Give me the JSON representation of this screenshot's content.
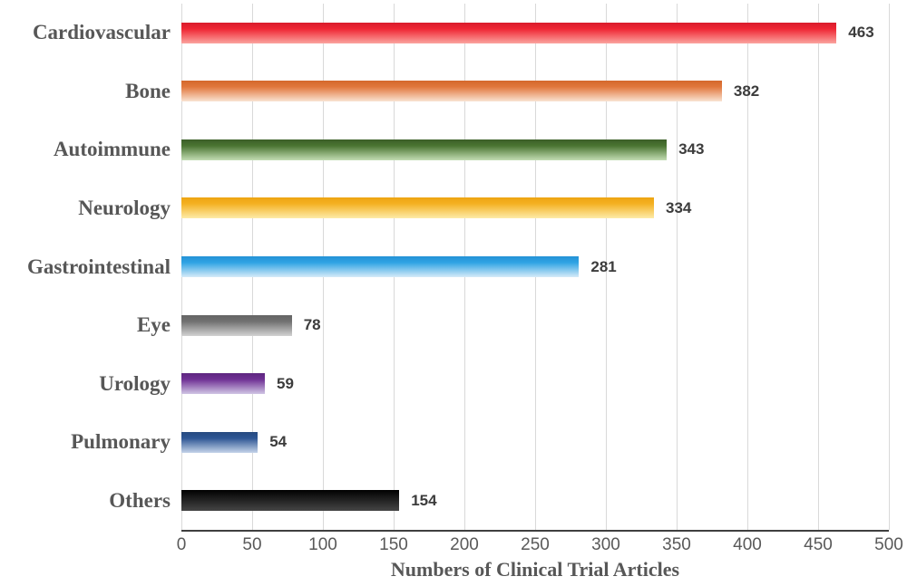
{
  "chart_data": {
    "type": "bar",
    "orientation": "horizontal",
    "title": "",
    "xlabel": "Numbers of Clinical Trial Articles",
    "ylabel": "",
    "xlim": [
      0,
      500
    ],
    "xticks": [
      0,
      50,
      100,
      150,
      200,
      250,
      300,
      350,
      400,
      450,
      500
    ],
    "grid": "vertical",
    "legend": "none",
    "categories": [
      "Cardiovascular",
      "Bone",
      "Autoimmune",
      "Neurology",
      "Gastrointestinal",
      "Eye",
      "Urology",
      "Pulmonary",
      "Others"
    ],
    "values": [
      463,
      382,
      343,
      334,
      281,
      78,
      59,
      54,
      154
    ],
    "bar_gradients": [
      [
        "#d91c2b",
        "#ef2533",
        "#fba49f"
      ],
      [
        "#d4682c",
        "#e1773c",
        "#f9e3d2"
      ],
      [
        "#3c5f28",
        "#4a7431",
        "#c3ddb3"
      ],
      [
        "#eda411",
        "#f4b122",
        "#fdeba8"
      ],
      [
        "#2492d6",
        "#2fa3e4",
        "#d6ebf8"
      ],
      [
        "#646464",
        "#717171",
        "#d2d2d2"
      ],
      [
        "#5e2680",
        "#6f3094",
        "#d0c5e4"
      ],
      [
        "#264a80",
        "#2e5694",
        "#c5d4e9"
      ],
      [
        "#000000",
        "#161616",
        "#454545"
      ]
    ],
    "colors": {
      "gridline": "#d9d9d9",
      "axis_line": "#3f3f3f",
      "category_label_text": "#575757",
      "value_label_text": "#3c3c3c",
      "tick_label_text": "#595959",
      "axis_title_text": "#575757",
      "background": "#ffffff"
    }
  }
}
